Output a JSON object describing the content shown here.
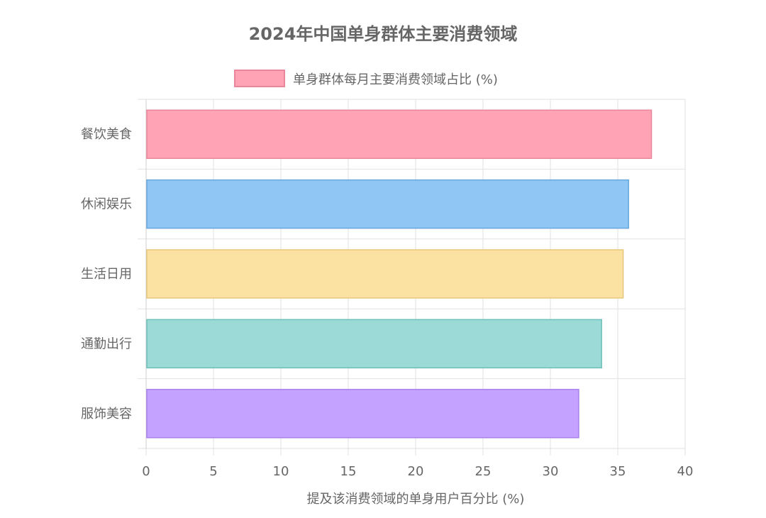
{
  "chart_data": {
    "type": "bar",
    "orientation": "horizontal",
    "title": "2024年中国单身群体主要消费领域",
    "xlabel": "提及该消费领域的单身用户百分比 (%)",
    "ylabel": "",
    "xlim": [
      0,
      40
    ],
    "x_ticks": [
      "0",
      "5",
      "10",
      "15",
      "20",
      "25",
      "30",
      "35",
      "40"
    ],
    "categories": [
      "餐饮美食",
      "休闲娱乐",
      "生活日用",
      "通勤出行",
      "服饰美容"
    ],
    "series": [
      {
        "name": "单身群体每月主要消费领域占比 (%)",
        "values": [
          37.5,
          35.8,
          35.4,
          33.8,
          32.1
        ]
      }
    ],
    "bar_colors": [
      "#ffa3b5",
      "#8fc6f4",
      "#fbe2a3",
      "#9bdad6",
      "#c4a2ff"
    ],
    "bar_borders": [
      "#e8869b",
      "#66a8de",
      "#e8c77c",
      "#6fbfb9",
      "#a881ec"
    ],
    "legend_color": "#ffa3b5",
    "legend_border": "#e8869b",
    "legend_position": "top-center",
    "grid": true
  }
}
